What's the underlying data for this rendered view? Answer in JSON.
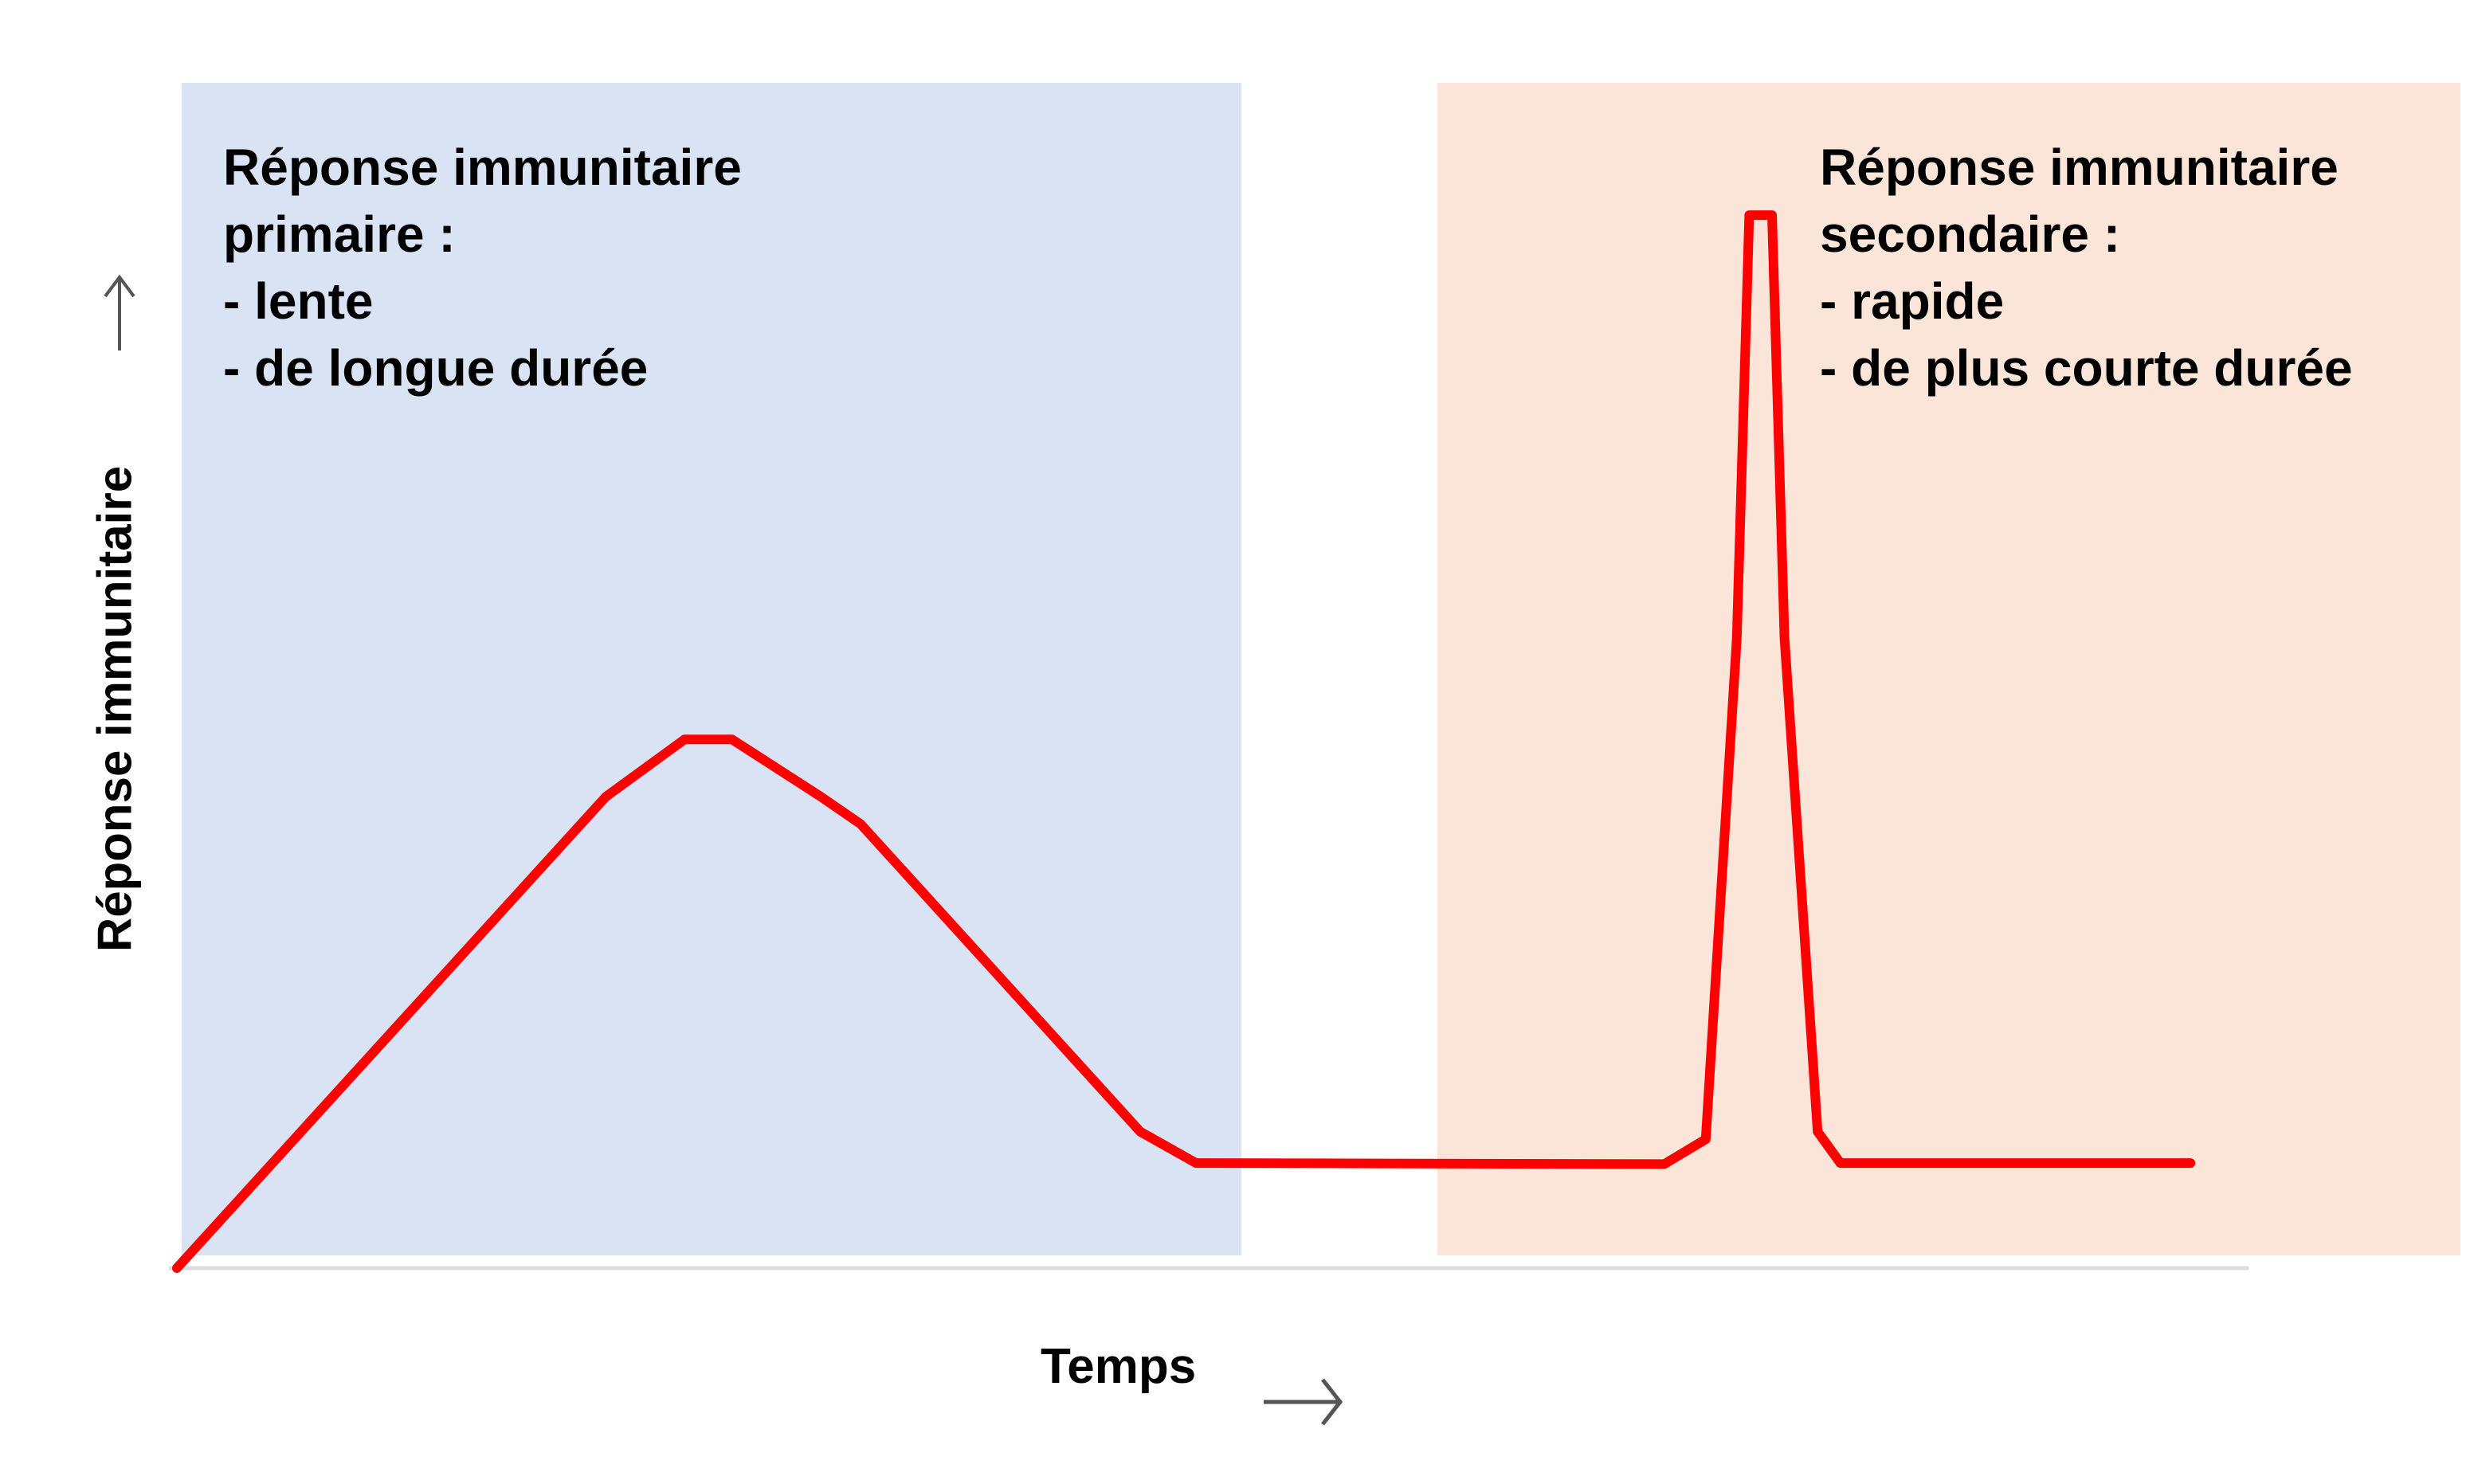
{
  "chart_data": {
    "type": "line",
    "title": "",
    "xlabel": "Temps",
    "ylabel": "Réponse immunitaire",
    "xlim": [
      0,
      100
    ],
    "ylim": [
      0,
      100
    ],
    "grid": false,
    "series": [
      {
        "name": "Réponse immunitaire",
        "color": "#ff0000",
        "x": [
          0,
          20.7,
          24.5,
          26.8,
          31.1,
          33.0,
          46.5,
          49.2,
          71.8,
          73.8,
          75.3,
          75.9,
          77.0,
          77.6,
          79.2,
          80.3,
          97.2
        ],
        "y": [
          0,
          43.5,
          48.8,
          48.8,
          43.5,
          41.0,
          12.6,
          9.7,
          9.6,
          11.9,
          58.2,
          97.2,
          97.2,
          58.2,
          12.6,
          9.7,
          9.7
        ]
      }
    ],
    "regions": [
      {
        "name": "primary",
        "x_range": [
          0.2,
          51.4
        ],
        "color": "#dae3f3",
        "lines": [
          "Réponse immunitaire",
          "primaire :",
          "- lente",
          "- de longue durée"
        ]
      },
      {
        "name": "secondary",
        "x_range": [
          60.9,
          110.2
        ],
        "color": "#fae5d8",
        "lines": [
          "Réponse immunitaire",
          "secondaire :",
          "- rapide",
          "- de plus courte durée"
        ]
      }
    ],
    "axis_arrows": {
      "y": "up-arrow-icon",
      "x": "right-arrow-icon"
    }
  }
}
